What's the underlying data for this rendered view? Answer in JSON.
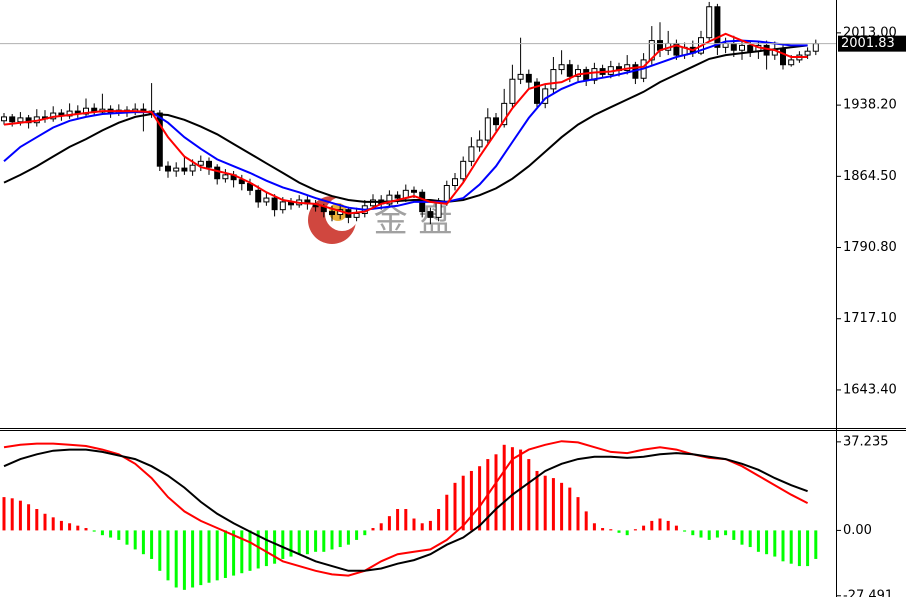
{
  "chart_data": [
    {
      "type": "candlestick",
      "watermark": "金 盘",
      "ylim": [
        1604,
        2047
      ],
      "yticks": [
        {
          "value": 2013,
          "label": "2013.00"
        },
        {
          "value": 1938.2,
          "label": "1938.20"
        },
        {
          "value": 1864.5,
          "label": "1864.50"
        },
        {
          "value": 1790.8,
          "label": "1790.80"
        },
        {
          "value": 1717.1,
          "label": "1717.10"
        },
        {
          "value": 1643.4,
          "label": "1643.40"
        }
      ],
      "last_price": 2001.83,
      "up_color": "#ffffff",
      "down_color": "#000000",
      "open": [
        1922,
        1926,
        1921,
        1925,
        1920,
        1926,
        1924,
        1930,
        1927,
        1932,
        1929,
        1935,
        1931,
        1934,
        1930,
        1933,
        1931,
        1934,
        1932,
        1930,
        1875,
        1870,
        1873,
        1870,
        1876,
        1880,
        1874,
        1862,
        1866,
        1861,
        1857,
        1850,
        1838,
        1842,
        1830,
        1838,
        1835,
        1840,
        1836,
        1833,
        1828,
        1825,
        1830,
        1822,
        1826,
        1834,
        1840,
        1836,
        1845,
        1842,
        1850,
        1848,
        1828,
        1822,
        1838,
        1855,
        1862,
        1880,
        1895,
        1902,
        1925,
        1918,
        1940,
        1965,
        1970,
        1962,
        1940,
        1955,
        1975,
        1980,
        1968,
        1975,
        1964,
        1976,
        1970,
        1978,
        1974,
        1980,
        1966,
        1985,
        2005,
        1995,
        2002,
        1990,
        1998,
        1992,
        2008,
        2040,
        1998,
        2002,
        1995,
        2000,
        1994,
        2000,
        1990,
        1996,
        1980,
        1985,
        1990,
        1994
      ],
      "high": [
        1930,
        1929,
        1931,
        1928,
        1934,
        1933,
        1937,
        1934,
        1940,
        1938,
        1945,
        1940,
        1950,
        1938,
        1939,
        1937,
        1940,
        1940,
        1961,
        1933,
        1880,
        1879,
        1885,
        1882,
        1886,
        1884,
        1877,
        1872,
        1870,
        1866,
        1862,
        1855,
        1848,
        1846,
        1843,
        1842,
        1845,
        1844,
        1840,
        1836,
        1834,
        1836,
        1833,
        1832,
        1840,
        1846,
        1845,
        1850,
        1849,
        1856,
        1854,
        1851,
        1832,
        1842,
        1860,
        1868,
        1885,
        1905,
        1912,
        1935,
        1930,
        1955,
        1980,
        2008,
        1975,
        1966,
        1960,
        1988,
        1995,
        1985,
        1980,
        1978,
        1982,
        1980,
        1984,
        1982,
        1990,
        1983,
        1992,
        2020,
        2024,
        2015,
        2006,
        2003,
        2005,
        2015,
        2045,
        2043,
        2008,
        2010,
        2006,
        2004,
        2004,
        2005,
        2004,
        2000,
        1990,
        1994,
        1998,
        2006
      ],
      "low": [
        1918,
        1916,
        1917,
        1914,
        1916,
        1920,
        1921,
        1922,
        1924,
        1925,
        1926,
        1927,
        1928,
        1925,
        1927,
        1926,
        1928,
        1911,
        1925,
        1870,
        1863,
        1864,
        1866,
        1865,
        1870,
        1866,
        1856,
        1858,
        1853,
        1850,
        1845,
        1832,
        1834,
        1823,
        1826,
        1830,
        1832,
        1830,
        1828,
        1822,
        1818,
        1820,
        1816,
        1818,
        1822,
        1830,
        1830,
        1832,
        1836,
        1838,
        1842,
        1822,
        1815,
        1818,
        1834,
        1850,
        1858,
        1875,
        1890,
        1898,
        1910,
        1915,
        1936,
        1960,
        1955,
        1935,
        1935,
        1950,
        1970,
        1962,
        1963,
        1958,
        1960,
        1966,
        1966,
        1968,
        1970,
        1960,
        1962,
        1980,
        1988,
        1990,
        1985,
        1986,
        1988,
        1990,
        2004,
        1990,
        1992,
        1988,
        1985,
        1988,
        1986,
        1975,
        1985,
        1975,
        1978,
        1982,
        1986,
        1990
      ],
      "close": [
        1926,
        1921,
        1925,
        1920,
        1926,
        1924,
        1930,
        1927,
        1932,
        1929,
        1935,
        1931,
        1934,
        1930,
        1933,
        1931,
        1934,
        1932,
        1930,
        1875,
        1870,
        1873,
        1870,
        1876,
        1880,
        1874,
        1862,
        1866,
        1861,
        1857,
        1850,
        1838,
        1842,
        1830,
        1838,
        1835,
        1840,
        1836,
        1833,
        1828,
        1825,
        1830,
        1822,
        1826,
        1834,
        1840,
        1836,
        1845,
        1842,
        1850,
        1848,
        1828,
        1822,
        1838,
        1855,
        1862,
        1880,
        1895,
        1902,
        1925,
        1918,
        1940,
        1965,
        1970,
        1962,
        1940,
        1955,
        1975,
        1980,
        1968,
        1975,
        1964,
        1976,
        1970,
        1978,
        1974,
        1980,
        1966,
        1985,
        2005,
        1995,
        2002,
        1990,
        1998,
        1992,
        2008,
        2040,
        1998,
        2002,
        1995,
        2000,
        1994,
        2000,
        1990,
        1996,
        1980,
        1985,
        1990,
        1994,
        2001.83
      ],
      "lines": [
        {
          "color": "#000000",
          "x": [
            0,
            2,
            4,
            6,
            8,
            10,
            12,
            14,
            16,
            18,
            20,
            22,
            24,
            26,
            28,
            30,
            32,
            34,
            36,
            38,
            40,
            42,
            44,
            46,
            48,
            50,
            52,
            54,
            56,
            58,
            60,
            62,
            64,
            66,
            68,
            70,
            72,
            74,
            76,
            78,
            80,
            82,
            84,
            86,
            88,
            90,
            92,
            94,
            96,
            98
          ],
          "values": [
            1858,
            1866,
            1875,
            1885,
            1895,
            1903,
            1912,
            1920,
            1926,
            1929,
            1928,
            1923,
            1916,
            1908,
            1898,
            1888,
            1878,
            1868,
            1858,
            1850,
            1844,
            1840,
            1838,
            1838,
            1839,
            1840,
            1840,
            1838,
            1840,
            1845,
            1852,
            1862,
            1875,
            1890,
            1905,
            1918,
            1928,
            1936,
            1944,
            1952,
            1962,
            1970,
            1978,
            1986,
            1990,
            1992,
            1994,
            1996,
            1998,
            2000
          ]
        },
        {
          "color": "#0000ff",
          "x": [
            0,
            2,
            4,
            6,
            8,
            10,
            12,
            14,
            16,
            18,
            20,
            22,
            24,
            26,
            28,
            30,
            32,
            34,
            36,
            38,
            40,
            42,
            44,
            46,
            48,
            50,
            52,
            54,
            56,
            58,
            60,
            62,
            64,
            66,
            68,
            70,
            72,
            74,
            76,
            78,
            80,
            82,
            84,
            86,
            88,
            90,
            92,
            94,
            96,
            98
          ],
          "values": [
            1880,
            1895,
            1905,
            1915,
            1922,
            1926,
            1929,
            1930,
            1931,
            1931,
            1920,
            1905,
            1893,
            1882,
            1875,
            1868,
            1860,
            1853,
            1848,
            1842,
            1837,
            1832,
            1830,
            1832,
            1834,
            1838,
            1838,
            1838,
            1842,
            1856,
            1875,
            1900,
            1925,
            1945,
            1955,
            1962,
            1965,
            1968,
            1972,
            1976,
            1982,
            1988,
            1992,
            1998,
            2004,
            2005,
            2004,
            2002,
            2000,
            2000
          ]
        },
        {
          "color": "#ff0000",
          "x": [
            0,
            2,
            4,
            6,
            8,
            10,
            12,
            14,
            16,
            18,
            20,
            22,
            24,
            26,
            28,
            30,
            32,
            34,
            36,
            38,
            40,
            42,
            44,
            46,
            48,
            50,
            52,
            54,
            56,
            58,
            60,
            62,
            64,
            66,
            68,
            70,
            72,
            74,
            76,
            78,
            80,
            82,
            84,
            86,
            88,
            90,
            92,
            94,
            96,
            98
          ],
          "values": [
            1918,
            1920,
            1922,
            1926,
            1928,
            1930,
            1932,
            1932,
            1932,
            1931,
            1905,
            1885,
            1874,
            1870,
            1866,
            1858,
            1848,
            1840,
            1837,
            1836,
            1831,
            1826,
            1828,
            1836,
            1840,
            1844,
            1838,
            1836,
            1858,
            1885,
            1910,
            1935,
            1955,
            1960,
            1962,
            1970,
            1972,
            1973,
            1976,
            1978,
            1995,
            2000,
            1995,
            2004,
            2012,
            2005,
            1998,
            1995,
            1988,
            1988
          ]
        }
      ]
    },
    {
      "type": "macd",
      "ylim": [
        -28,
        41.8
      ],
      "yticks": [
        {
          "value": 37.235,
          "label": "37.235"
        },
        {
          "value": 0,
          "label": "0.00"
        },
        {
          "value": -27.491,
          "label": "-27.491"
        }
      ],
      "positive_color": "#ff0000",
      "negative_color": "#00ff00",
      "histogram": [
        14,
        13.5,
        12.5,
        11,
        9,
        7,
        5.5,
        4,
        3,
        2,
        1,
        -0.5,
        -2,
        -3,
        -4,
        -6,
        -8,
        -10,
        -12,
        -17,
        -21,
        -24,
        -25,
        -24,
        -23,
        -22,
        -21,
        -20,
        -19,
        -18,
        -17,
        -16,
        -15,
        -14,
        -12,
        -11,
        -10,
        -10,
        -9,
        -9,
        -8,
        -7,
        -6,
        -4,
        -2,
        1,
        3,
        6,
        9,
        9,
        5,
        3,
        4,
        9,
        15,
        20,
        23,
        25,
        27,
        30,
        32,
        36,
        35,
        34,
        30,
        25,
        23,
        22,
        20,
        18,
        14,
        8,
        3,
        1,
        0.5,
        -1,
        -2,
        0.5,
        2,
        4,
        5,
        4,
        2,
        -0.5,
        -2,
        -3,
        -4,
        -3,
        -2,
        -4,
        -6,
        -7,
        -9,
        -10,
        -11,
        -13,
        -14,
        -15,
        -15,
        -12
      ],
      "lines": [
        {
          "color": "#ff0000",
          "x": [
            0,
            2,
            4,
            6,
            8,
            10,
            12,
            14,
            16,
            18,
            20,
            22,
            24,
            26,
            28,
            30,
            32,
            34,
            36,
            38,
            40,
            42,
            44,
            46,
            48,
            50,
            52,
            54,
            56,
            58,
            60,
            62,
            64,
            66,
            68,
            70,
            72,
            74,
            76,
            78,
            80,
            82,
            84,
            86,
            88,
            90,
            92,
            94,
            96,
            98
          ],
          "values": [
            35,
            36,
            36.5,
            36.5,
            36,
            35.5,
            34,
            32,
            28,
            22,
            14,
            8,
            4,
            1,
            -2,
            -5,
            -9,
            -13,
            -15,
            -17,
            -18.5,
            -19,
            -17,
            -13,
            -10,
            -9,
            -8,
            -4,
            2,
            10,
            20,
            30,
            34,
            36,
            37.5,
            37,
            35,
            33,
            32.5,
            34,
            35,
            34,
            32,
            30.5,
            30,
            27,
            23,
            19,
            15,
            11.5
          ]
        },
        {
          "color": "#000000",
          "x": [
            0,
            2,
            4,
            6,
            8,
            10,
            12,
            14,
            16,
            18,
            20,
            22,
            24,
            26,
            28,
            30,
            32,
            34,
            36,
            38,
            40,
            42,
            44,
            46,
            48,
            50,
            52,
            54,
            56,
            58,
            60,
            62,
            64,
            66,
            68,
            70,
            72,
            74,
            76,
            78,
            80,
            82,
            84,
            86,
            88,
            90,
            92,
            94,
            96,
            98
          ],
          "values": [
            27,
            30,
            32,
            33.5,
            34,
            34,
            33,
            31.5,
            30,
            27,
            23,
            18,
            12,
            7,
            3,
            -0.5,
            -4,
            -7,
            -10,
            -13,
            -15,
            -17,
            -17,
            -16,
            -14,
            -12.5,
            -10,
            -6,
            -3,
            2,
            9,
            15,
            20,
            25,
            28,
            30,
            31,
            31,
            30.5,
            31,
            32,
            32.5,
            32,
            31,
            30,
            28,
            25.5,
            22,
            19,
            16.5
          ]
        }
      ]
    }
  ]
}
